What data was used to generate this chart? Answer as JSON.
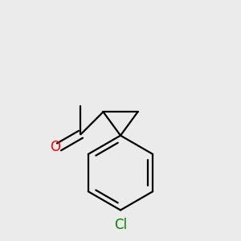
{
  "background_color": "#ebebeb",
  "bond_color": "#000000",
  "line_width": 1.6,
  "figsize": [
    3.0,
    3.0
  ],
  "dpi": 100,
  "O_color": "#ff0000",
  "O_label": "O",
  "Cl_color": "#008000",
  "Cl_label": "Cl",
  "font_size": 12,
  "xlim": [
    -1.8,
    1.8
  ],
  "ylim": [
    -3.0,
    2.2
  ]
}
